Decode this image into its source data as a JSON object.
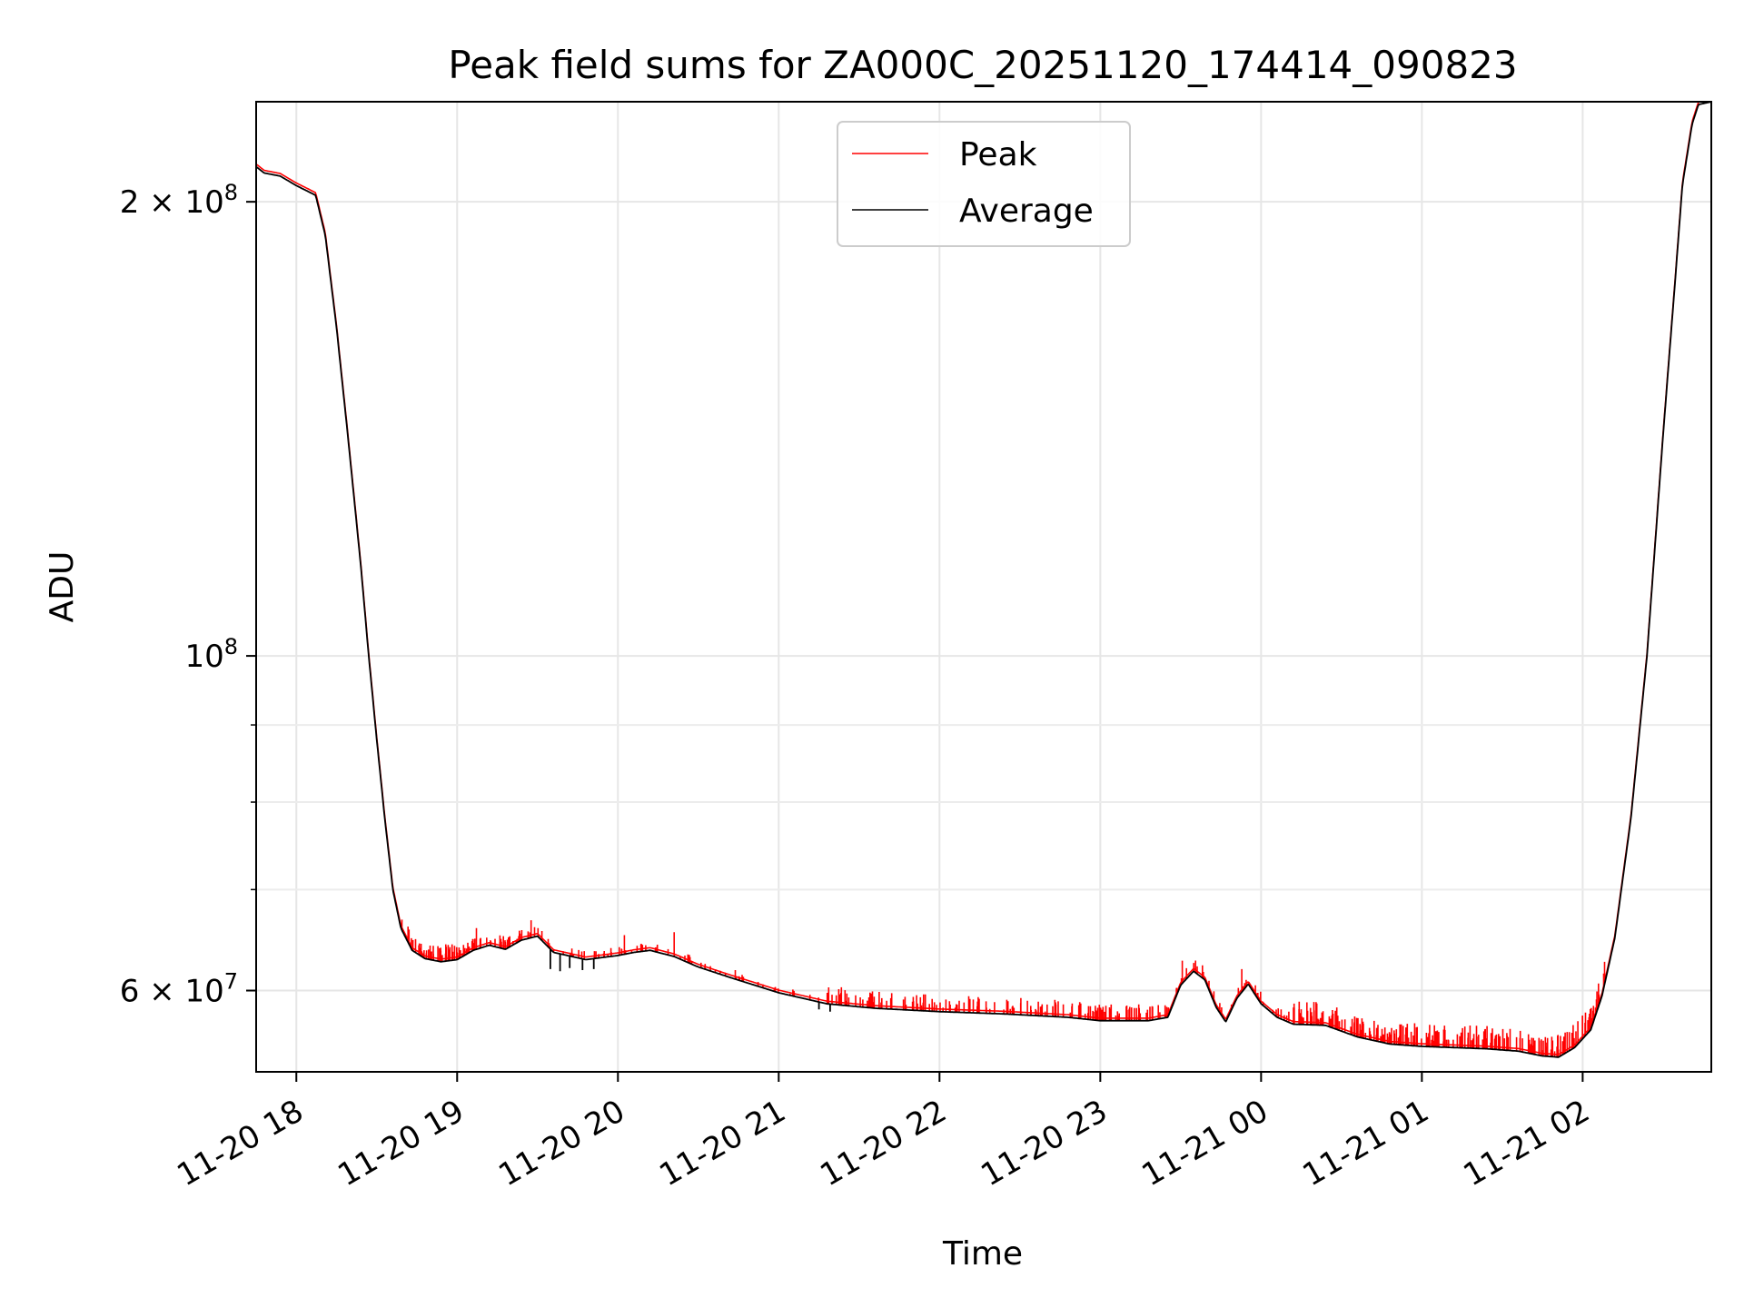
{
  "chart_data": {
    "type": "line",
    "title": "Peak field sums for ZA000C_20251120_174414_090823",
    "xlabel": "Time",
    "ylabel": "ADU",
    "yscale": "log",
    "ylim": [
      53000000,
      233000000
    ],
    "xlim_hours": [
      17.75,
      26.8
    ],
    "grid": true,
    "legend_position": "top-center",
    "x_ticks": [
      {
        "hour": 18,
        "label": "11-20 18"
      },
      {
        "hour": 19,
        "label": "11-20 19"
      },
      {
        "hour": 20,
        "label": "11-20 20"
      },
      {
        "hour": 21,
        "label": "11-20 21"
      },
      {
        "hour": 22,
        "label": "11-20 22"
      },
      {
        "hour": 23,
        "label": "11-20 23"
      },
      {
        "hour": 24,
        "label": "11-21 00"
      },
      {
        "hour": 25,
        "label": "11-21 01"
      },
      {
        "hour": 26,
        "label": "11-21 02"
      }
    ],
    "y_major_ticks": [
      {
        "value": 60000000,
        "mantissa": "6",
        "base": "10",
        "exp": "7"
      },
      {
        "value": 100000000,
        "mantissa": "",
        "base": "10",
        "exp": "8"
      },
      {
        "value": 200000000,
        "mantissa": "2",
        "base": "10",
        "exp": "8"
      }
    ],
    "y_minor_ticks": [
      70000000,
      80000000,
      90000000
    ],
    "series": [
      {
        "name": "Peak",
        "color": "#ff0000"
      },
      {
        "name": "Average",
        "color": "#000000"
      }
    ],
    "average_points": [
      [
        17.75,
        211000000
      ],
      [
        17.8,
        209000000
      ],
      [
        17.9,
        208000000
      ],
      [
        18.0,
        205000000
      ],
      [
        18.08,
        203000000
      ],
      [
        18.12,
        202000000
      ],
      [
        18.18,
        190000000
      ],
      [
        18.25,
        165000000
      ],
      [
        18.32,
        140000000
      ],
      [
        18.4,
        115000000
      ],
      [
        18.45,
        100000000
      ],
      [
        18.5,
        88000000
      ],
      [
        18.55,
        78000000
      ],
      [
        18.6,
        70000000
      ],
      [
        18.65,
        66000000
      ],
      [
        18.72,
        63800000
      ],
      [
        18.8,
        63000000
      ],
      [
        18.9,
        62700000
      ],
      [
        19.0,
        62900000
      ],
      [
        19.1,
        63800000
      ],
      [
        19.2,
        64300000
      ],
      [
        19.3,
        63900000
      ],
      [
        19.4,
        64800000
      ],
      [
        19.5,
        65200000
      ],
      [
        19.6,
        63600000
      ],
      [
        19.8,
        62900000
      ],
      [
        20.0,
        63300000
      ],
      [
        20.1,
        63600000
      ],
      [
        20.2,
        63800000
      ],
      [
        20.35,
        63200000
      ],
      [
        20.5,
        62200000
      ],
      [
        20.7,
        61200000
      ],
      [
        21.0,
        59800000
      ],
      [
        21.3,
        58800000
      ],
      [
        21.6,
        58400000
      ],
      [
        22.0,
        58100000
      ],
      [
        22.4,
        57900000
      ],
      [
        22.8,
        57600000
      ],
      [
        23.0,
        57300000
      ],
      [
        23.3,
        57300000
      ],
      [
        23.42,
        57600000
      ],
      [
        23.5,
        60500000
      ],
      [
        23.58,
        61800000
      ],
      [
        23.65,
        61000000
      ],
      [
        23.72,
        58500000
      ],
      [
        23.78,
        57200000
      ],
      [
        23.85,
        59300000
      ],
      [
        23.92,
        60600000
      ],
      [
        24.0,
        58800000
      ],
      [
        24.1,
        57600000
      ],
      [
        24.2,
        57000000
      ],
      [
        24.4,
        56900000
      ],
      [
        24.6,
        55900000
      ],
      [
        24.8,
        55300000
      ],
      [
        25.0,
        55100000
      ],
      [
        25.2,
        55000000
      ],
      [
        25.4,
        54900000
      ],
      [
        25.6,
        54700000
      ],
      [
        25.75,
        54300000
      ],
      [
        25.85,
        54200000
      ],
      [
        25.95,
        55000000
      ],
      [
        26.05,
        56500000
      ],
      [
        26.12,
        59500000
      ],
      [
        26.2,
        65000000
      ],
      [
        26.3,
        78000000
      ],
      [
        26.4,
        100000000
      ],
      [
        26.5,
        140000000
      ],
      [
        26.58,
        180000000
      ],
      [
        26.62,
        205000000
      ],
      [
        26.68,
        225000000
      ],
      [
        26.72,
        232000000
      ],
      [
        26.8,
        233000000
      ]
    ],
    "spike_regions": [
      {
        "from_hour": 18.65,
        "to_hour": 19.0,
        "rel_size": 0.02,
        "count": 45,
        "seed": 1
      },
      {
        "from_hour": 19.0,
        "to_hour": 19.55,
        "rel_size": 0.015,
        "count": 50,
        "seed": 2
      },
      {
        "from_hour": 19.55,
        "to_hour": 20.5,
        "rel_size": 0.01,
        "count": 40,
        "seed": 3
      },
      {
        "from_hour": 20.5,
        "to_hour": 21.3,
        "rel_size": 0.008,
        "count": 25,
        "seed": 4
      },
      {
        "from_hour": 21.3,
        "to_hour": 23.4,
        "rel_size": 0.02,
        "count": 160,
        "seed": 5
      },
      {
        "from_hour": 23.4,
        "to_hour": 24.2,
        "rel_size": 0.015,
        "count": 40,
        "seed": 6
      },
      {
        "from_hour": 24.2,
        "to_hour": 25.9,
        "rel_size": 0.028,
        "count": 210,
        "seed": 7
      },
      {
        "from_hour": 25.9,
        "to_hour": 26.15,
        "rel_size": 0.03,
        "count": 30,
        "seed": 8
      }
    ],
    "large_spikes": [
      [
        19.12,
        66000000
      ],
      [
        19.46,
        66800000
      ],
      [
        20.04,
        65300000
      ],
      [
        20.35,
        65600000
      ],
      [
        20.73,
        61900000
      ],
      [
        21.39,
        60300000
      ],
      [
        23.51,
        62800000
      ],
      [
        23.88,
        62000000
      ]
    ],
    "average_dips": [
      [
        19.58,
        62000000
      ],
      [
        19.64,
        61800000
      ],
      [
        19.7,
        62100000
      ],
      [
        19.78,
        61900000
      ],
      [
        19.85,
        62000000
      ],
      [
        21.25,
        58300000
      ],
      [
        21.32,
        58100000
      ]
    ]
  }
}
